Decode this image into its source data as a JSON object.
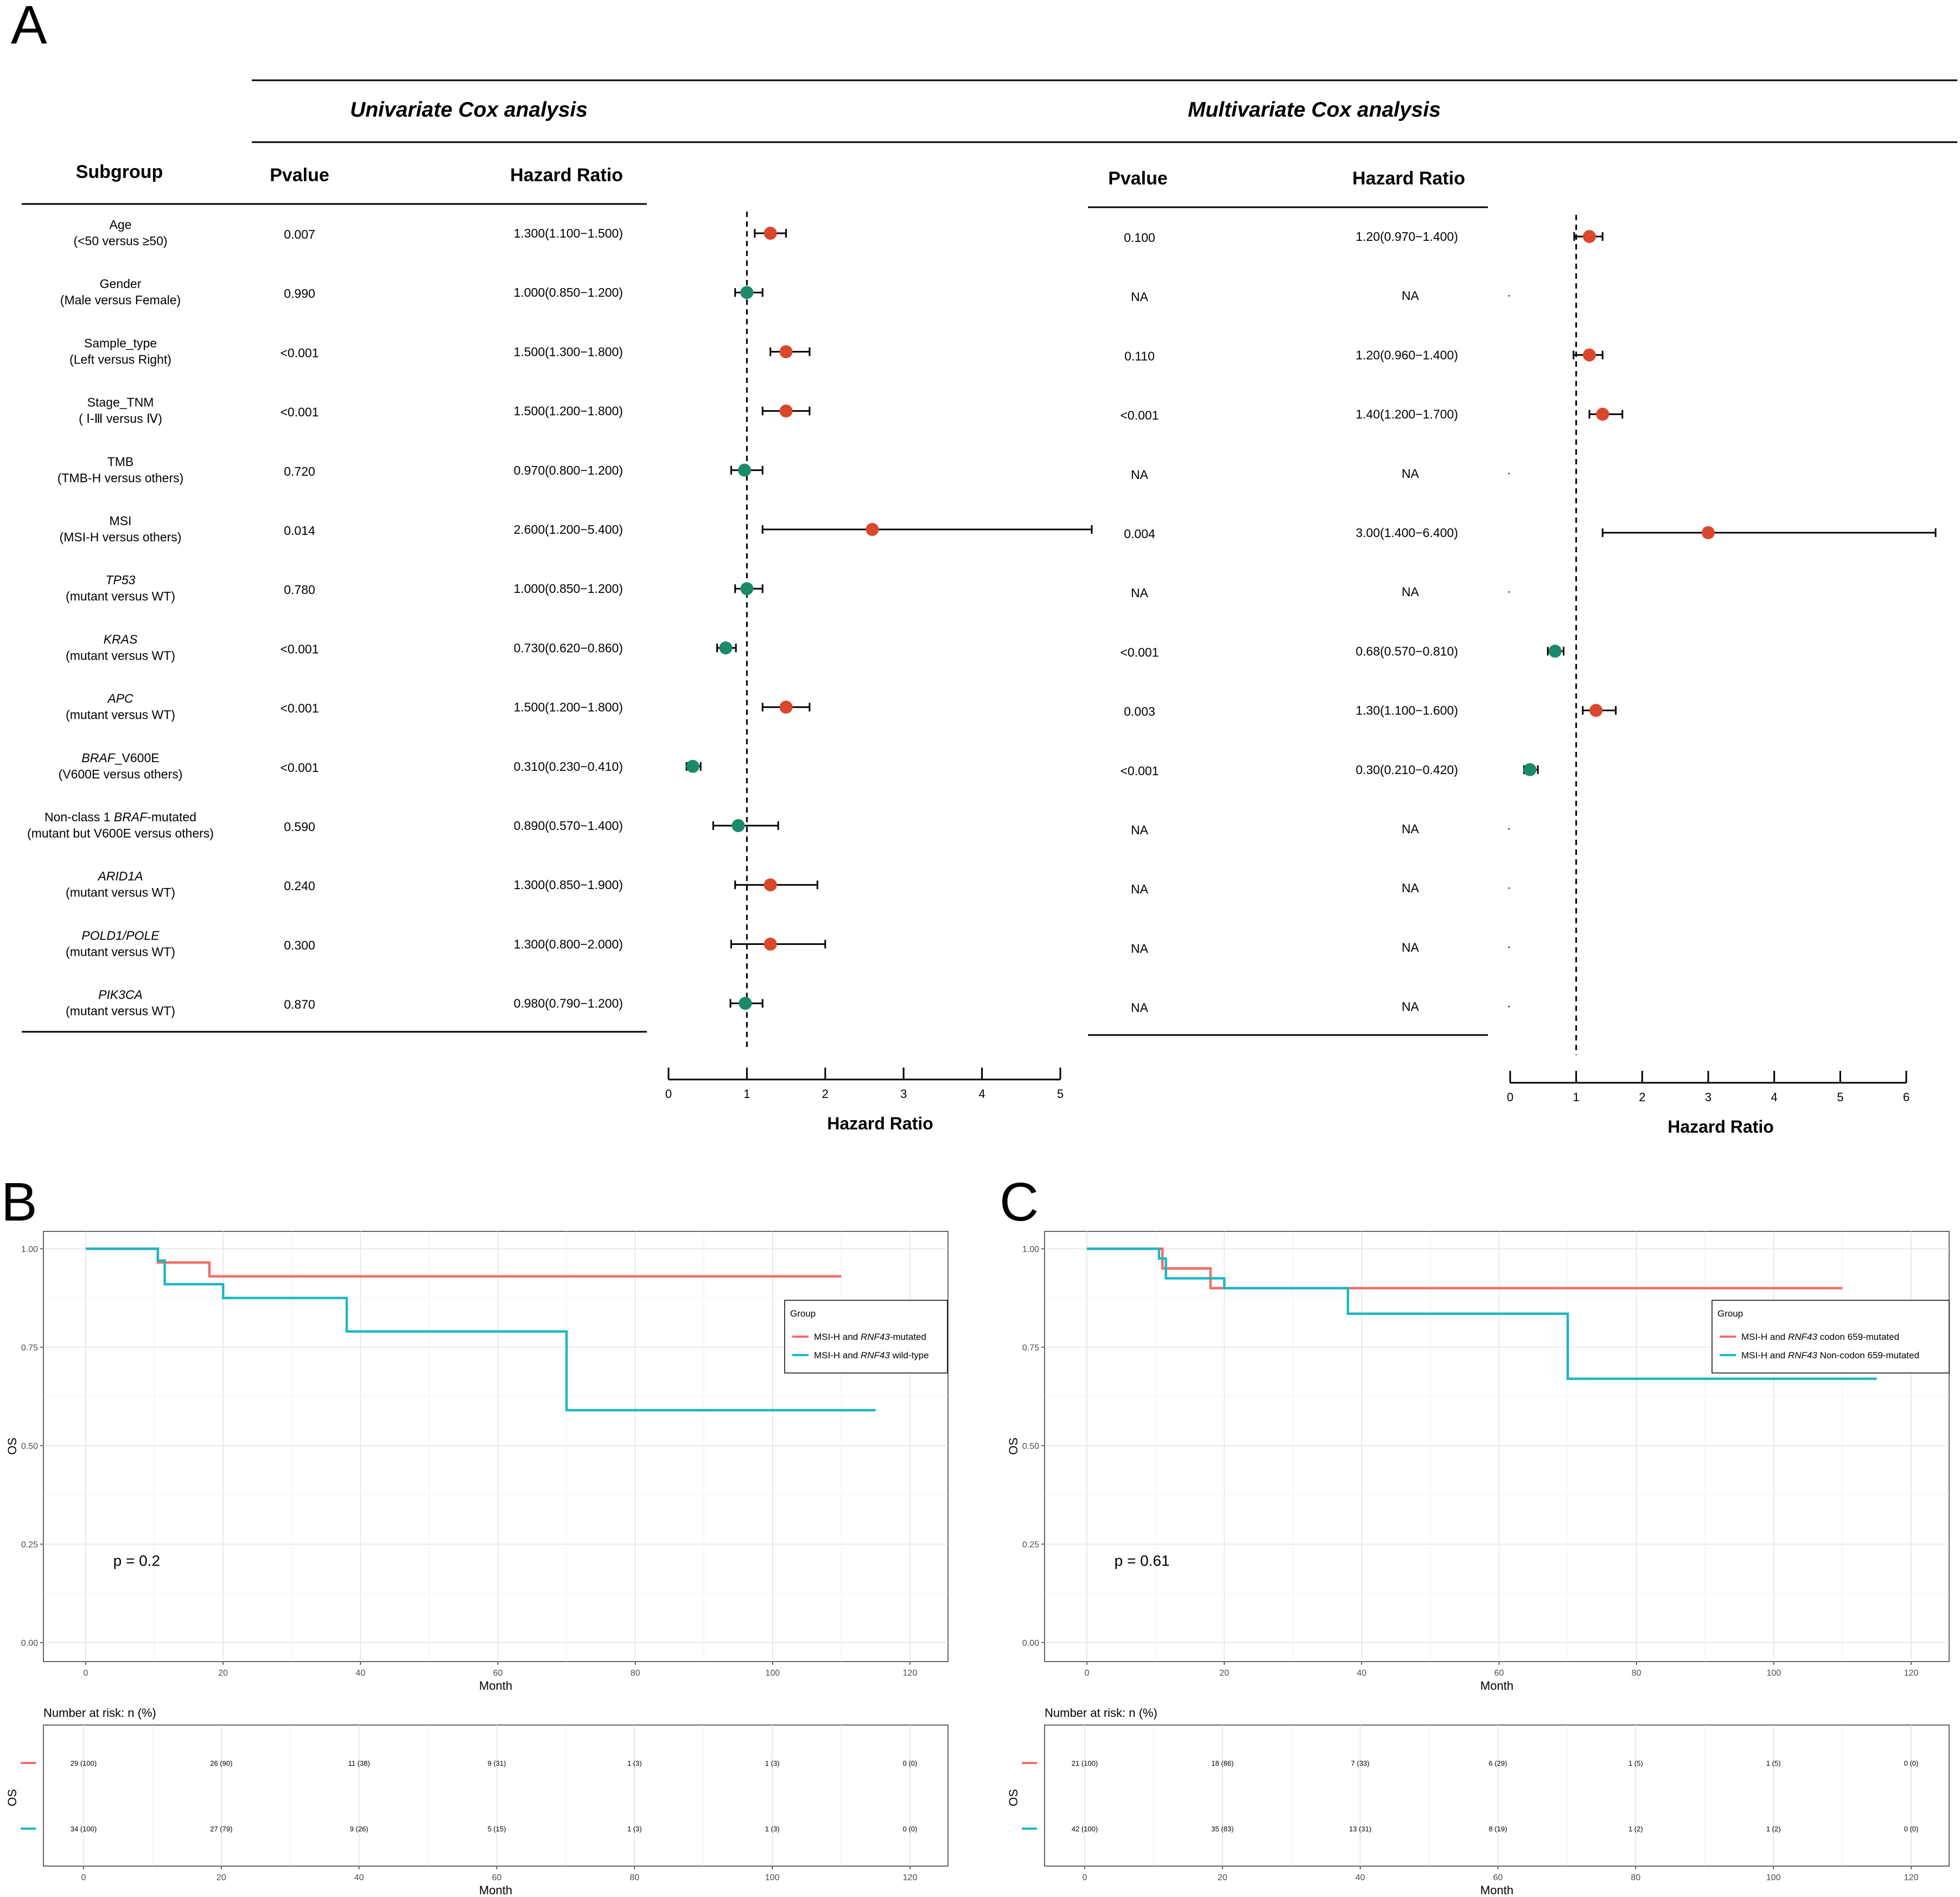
{
  "panels": {
    "a": "A",
    "b": "B",
    "c": "C"
  },
  "forest": {
    "uni_header": "Univariate Cox analysis",
    "multi_header": "Multivariate Cox analysis",
    "col_subgroup": "Subgroup",
    "col_pvalue": "Pvalue",
    "col_hr": "Hazard Ratio",
    "rows": [
      {
        "l1": "Age",
        "l2": "(<50 versus ≥50)",
        "up": "0.007",
        "uhr": "1.300(1.100−1.500)",
        "mp": "0.100",
        "mhr": "1.20(0.970−1.400)"
      },
      {
        "l1": "Gender",
        "l2": "(Male versus Female)",
        "up": "0.990",
        "uhr": "1.000(0.850−1.200)",
        "mp": "NA",
        "mhr": "NA"
      },
      {
        "l1": "Sample_type",
        "l2": "(Left versus Right)",
        "up": "<0.001",
        "uhr": "1.500(1.300−1.800)",
        "mp": "0.110",
        "mhr": "1.20(0.960−1.400)"
      },
      {
        "l1": "Stage_TNM",
        "l2": "( Ⅰ-Ⅲ  versus Ⅳ)",
        "up": "<0.001",
        "uhr": "1.500(1.200−1.800)",
        "mp": "<0.001",
        "mhr": "1.40(1.200−1.700)"
      },
      {
        "l1": "TMB",
        "l2": "(TMB-H versus others)",
        "up": "0.720",
        "uhr": "0.970(0.800−1.200)",
        "mp": "NA",
        "mhr": "NA"
      },
      {
        "l1": "MSI",
        "l2": "(MSI-H versus others)",
        "up": "0.014",
        "uhr": "2.600(1.200−5.400)",
        "mp": "0.004",
        "mhr": "3.00(1.400−6.400)"
      },
      {
        "l1": "TP53",
        "l2": "(mutant versus WT)",
        "up": "0.780",
        "uhr": "1.000(0.850−1.200)",
        "mp": "NA",
        "mhr": "NA"
      },
      {
        "l1": "KRAS",
        "l2": "(mutant versus WT)",
        "up": "<0.001",
        "uhr": "0.730(0.620−0.860)",
        "mp": "<0.001",
        "mhr": "0.68(0.570−0.810)"
      },
      {
        "l1": "APC",
        "l2": "(mutant versus WT)",
        "up": "<0.001",
        "uhr": "1.500(1.200−1.800)",
        "mp": "0.003",
        "mhr": "1.30(1.100−1.600)"
      },
      {
        "l1": "BRAF",
        "l1b": "_V600E",
        "l2": "(V600E versus others)",
        "up": "<0.001",
        "uhr": "0.310(0.230−0.410)",
        "mp": "<0.001",
        "mhr": "0.30(0.210−0.420)"
      },
      {
        "l1": "Non-class 1 ",
        "l1i": "BRAF",
        "l1c": "-mutated",
        "l2": "(mutant but V600E versus others)",
        "up": "0.590",
        "uhr": "0.890(0.570−1.400)",
        "mp": "NA",
        "mhr": "NA"
      },
      {
        "l1": "ARID1A",
        "l2": "(mutant versus WT)",
        "up": "0.240",
        "uhr": "1.300(0.850−1.900)",
        "mp": "NA",
        "mhr": "NA"
      },
      {
        "l1": "POLD1/POLE",
        "l2": "(mutant versus WT)",
        "up": "0.300",
        "uhr": "1.300(0.800−2.000)",
        "mp": "NA",
        "mhr": "NA"
      },
      {
        "l1": "PIK3CA",
        "l2": "(mutant versus WT)",
        "up": "0.870",
        "uhr": "0.980(0.790−1.200)",
        "mp": "NA",
        "mhr": "NA"
      }
    ],
    "axis_title": "Hazard Ratio"
  },
  "chart_data": [
    {
      "type": "scatter",
      "title": "Univariate Cox analysis",
      "xlabel": "Hazard Ratio",
      "xlim": [
        0,
        5
      ],
      "xticks": [
        "0",
        "1",
        "2",
        "3",
        "4",
        "5"
      ],
      "reference_line": 1,
      "points": [
        {
          "hr": 1.3,
          "lo": 1.1,
          "hi": 1.5,
          "color": "#D9482C"
        },
        {
          "hr": 1.0,
          "lo": 0.85,
          "hi": 1.2,
          "color": "#1B8A6B"
        },
        {
          "hr": 1.5,
          "lo": 1.3,
          "hi": 1.8,
          "color": "#D9482C"
        },
        {
          "hr": 1.5,
          "lo": 1.2,
          "hi": 1.8,
          "color": "#D9482C"
        },
        {
          "hr": 0.97,
          "lo": 0.8,
          "hi": 1.2,
          "color": "#1B8A6B"
        },
        {
          "hr": 2.6,
          "lo": 1.2,
          "hi": 5.4,
          "color": "#D9482C"
        },
        {
          "hr": 1.0,
          "lo": 0.85,
          "hi": 1.2,
          "color": "#1B8A6B"
        },
        {
          "hr": 0.73,
          "lo": 0.62,
          "hi": 0.86,
          "color": "#1B8A6B"
        },
        {
          "hr": 1.5,
          "lo": 1.2,
          "hi": 1.8,
          "color": "#D9482C"
        },
        {
          "hr": 0.31,
          "lo": 0.23,
          "hi": 0.41,
          "color": "#1B8A6B"
        },
        {
          "hr": 0.89,
          "lo": 0.57,
          "hi": 1.4,
          "color": "#1B8A6B"
        },
        {
          "hr": 1.3,
          "lo": 0.85,
          "hi": 1.9,
          "color": "#D9482C"
        },
        {
          "hr": 1.3,
          "lo": 0.8,
          "hi": 2.0,
          "color": "#D9482C"
        },
        {
          "hr": 0.98,
          "lo": 0.79,
          "hi": 1.2,
          "color": "#1B8A6B"
        }
      ]
    },
    {
      "type": "scatter",
      "title": "Multivariate Cox analysis",
      "xlabel": "Hazard Ratio",
      "xlim": [
        0,
        6
      ],
      "xticks": [
        "0",
        "1",
        "2",
        "3",
        "4",
        "5",
        "6"
      ],
      "reference_line": 1,
      "points": [
        {
          "hr": 1.2,
          "lo": 0.97,
          "hi": 1.4,
          "color": "#D9482C"
        },
        null,
        {
          "hr": 1.2,
          "lo": 0.96,
          "hi": 1.4,
          "color": "#D9482C"
        },
        {
          "hr": 1.4,
          "lo": 1.2,
          "hi": 1.7,
          "color": "#D9482C"
        },
        null,
        {
          "hr": 3.0,
          "lo": 1.4,
          "hi": 6.4,
          "color": "#D9482C"
        },
        null,
        {
          "hr": 0.68,
          "lo": 0.57,
          "hi": 0.81,
          "color": "#1B8A6B"
        },
        {
          "hr": 1.3,
          "lo": 1.1,
          "hi": 1.6,
          "color": "#D9482C"
        },
        {
          "hr": 0.3,
          "lo": 0.21,
          "hi": 0.42,
          "color": "#1B8A6B"
        },
        null,
        null,
        null,
        null
      ]
    },
    {
      "type": "line",
      "title": "",
      "xlabel": "Month",
      "ylabel": "OS",
      "xlim": [
        0,
        125
      ],
      "ylim": [
        0,
        1
      ],
      "xticks": [
        "0",
        "20",
        "40",
        "60",
        "80",
        "100",
        "120"
      ],
      "yticks": [
        "0.00",
        "0.25",
        "0.50",
        "0.75",
        "1.00"
      ],
      "pvalue": "p = 0.2",
      "legend_title": "Group",
      "legend_position": "right",
      "series": [
        {
          "name": "MSI-H and RNF43-mutated",
          "pre": "MSI-H and ",
          "gene": "RNF43",
          "post": "-mutated",
          "color": "#F06E67",
          "steps": [
            [
              0,
              1.0
            ],
            [
              10.5,
              0.965
            ],
            [
              18,
              0.93
            ],
            [
              110,
              0.93
            ]
          ]
        },
        {
          "name": "MSI-H and RNF43 wild-type",
          "pre": "MSI-H and ",
          "gene": "RNF43",
          "post": " wild-type",
          "color": "#1FB6C3",
          "steps": [
            [
              0,
              1.0
            ],
            [
              10.5,
              0.97
            ],
            [
              11.5,
              0.91
            ],
            [
              20,
              0.875
            ],
            [
              38,
              0.79
            ],
            [
              70,
              0.59
            ],
            [
              115,
              0.59
            ]
          ]
        }
      ],
      "risk_title": "Number at risk: n (%)",
      "risk_ylabel": "OS",
      "risk_xlabel": "Month",
      "risk_rows": [
        {
          "color": "#F06E67",
          "values": [
            "29 (100)",
            "26 (90)",
            "11 (38)",
            "9 (31)",
            "1 (3)",
            "1 (3)",
            "0 (0)"
          ]
        },
        {
          "color": "#1FB6C3",
          "values": [
            "34 (100)",
            "27 (79)",
            "9 (26)",
            "5 (15)",
            "1 (3)",
            "1 (3)",
            "0 (0)"
          ]
        }
      ]
    },
    {
      "type": "line",
      "title": "",
      "xlabel": "Month",
      "ylabel": "OS",
      "xlim": [
        0,
        125
      ],
      "ylim": [
        0,
        1
      ],
      "xticks": [
        "0",
        "20",
        "40",
        "60",
        "80",
        "100",
        "120"
      ],
      "yticks": [
        "0.00",
        "0.25",
        "0.50",
        "0.75",
        "1.00"
      ],
      "pvalue": "p = 0.61",
      "legend_title": "Group",
      "legend_position": "right",
      "series": [
        {
          "name": "MSI-H and RNF43 codon 659-mutated",
          "pre": "MSI-H and ",
          "gene": "RNF43",
          "post": " codon 659-mutated",
          "color": "#F06E67",
          "steps": [
            [
              0,
              1.0
            ],
            [
              11,
              0.95
            ],
            [
              18,
              0.9
            ],
            [
              110,
              0.9
            ]
          ]
        },
        {
          "name": "MSI-H and RNF43 Non-codon 659-mutated",
          "pre": "MSI-H and ",
          "gene": "RNF43",
          "post": " Non-codon 659-mutated",
          "color": "#1FB6C3",
          "steps": [
            [
              0,
              1.0
            ],
            [
              10.5,
              0.975
            ],
            [
              11.5,
              0.925
            ],
            [
              20,
              0.9
            ],
            [
              38,
              0.835
            ],
            [
              70,
              0.67
            ],
            [
              115,
              0.67
            ]
          ]
        }
      ],
      "risk_title": "Number at risk: n (%)",
      "risk_ylabel": "OS",
      "risk_xlabel": "Month",
      "risk_rows": [
        {
          "color": "#F06E67",
          "values": [
            "21 (100)",
            "18 (86)",
            "7 (33)",
            "6 (29)",
            "1 (5)",
            "1 (5)",
            "0 (0)"
          ]
        },
        {
          "color": "#1FB6C3",
          "values": [
            "42 (100)",
            "35 (83)",
            "13 (31)",
            "8 (19)",
            "1 (2)",
            "1 (2)",
            "0 (0)"
          ]
        }
      ]
    }
  ]
}
